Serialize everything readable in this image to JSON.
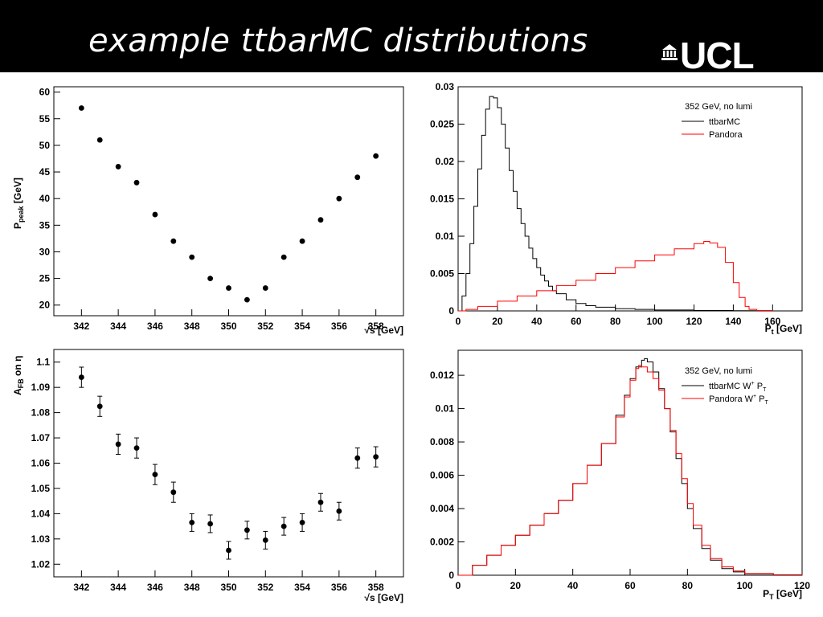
{
  "header": {
    "title": "example ttbarMC distributions",
    "logo_text": "UCL",
    "background": "#000000",
    "title_color": "#ffffff"
  },
  "chart_data": [
    {
      "type": "scatter",
      "x": [
        342,
        343,
        344,
        345,
        346,
        347,
        348,
        349,
        350,
        351,
        352,
        353,
        354,
        355,
        356,
        357,
        358
      ],
      "y": [
        57,
        51,
        46,
        43,
        37,
        32,
        29,
        25,
        23.2,
        21,
        23.2,
        29,
        32,
        36,
        40,
        44,
        48
      ],
      "xlabel": "√s [GeV]",
      "ylabel": "P",
      "ylabel_sub": "peak",
      "ylabel_unit": " [GeV]",
      "xlim": [
        340.5,
        359.5
      ],
      "ylim": [
        18,
        61
      ],
      "xticks": [
        342,
        344,
        346,
        348,
        350,
        352,
        354,
        356,
        358
      ],
      "yticks": [
        20,
        25,
        30,
        35,
        40,
        45,
        50,
        55,
        60
      ],
      "grid": false
    },
    {
      "type": "line",
      "xlabel": "P",
      "xlabel_sub": "t",
      "xlabel_unit": " [GeV]",
      "xlim": [
        0,
        175
      ],
      "ylim": [
        0,
        0.03
      ],
      "xticks": [
        0,
        20,
        40,
        60,
        80,
        100,
        120,
        140,
        160
      ],
      "yticks": [
        0,
        0.005,
        0.01,
        0.015,
        0.02,
        0.025,
        0.03
      ],
      "legend_position": "top-right",
      "legend_title": "352 GeV, no lumi",
      "grid": false,
      "series": [
        {
          "name": "ttbarMC",
          "color": "#000000",
          "points": [
            [
              0,
              0
            ],
            [
              2,
              0.002
            ],
            [
              4,
              0.005
            ],
            [
              6,
              0.009
            ],
            [
              8,
              0.014
            ],
            [
              10,
              0.019
            ],
            [
              12,
              0.0235
            ],
            [
              14,
              0.027
            ],
            [
              16,
              0.0287
            ],
            [
              18,
              0.0285
            ],
            [
              20,
              0.0272
            ],
            [
              22,
              0.025
            ],
            [
              24,
              0.0218
            ],
            [
              26,
              0.0188
            ],
            [
              28,
              0.016
            ],
            [
              30,
              0.0137
            ],
            [
              32,
              0.0117
            ],
            [
              34,
              0.01
            ],
            [
              36,
              0.0084
            ],
            [
              38,
              0.007
            ],
            [
              40,
              0.0058
            ],
            [
              42,
              0.0048
            ],
            [
              44,
              0.004
            ],
            [
              46,
              0.0033
            ],
            [
              48,
              0.0027
            ],
            [
              50,
              0.0023
            ],
            [
              55,
              0.0015
            ],
            [
              60,
              0.001
            ],
            [
              65,
              0.0007
            ],
            [
              70,
              0.0005
            ],
            [
              80,
              0.0003
            ],
            [
              90,
              0.0002
            ],
            [
              100,
              0.00012
            ],
            [
              120,
              5e-05
            ],
            [
              140,
              2e-05
            ],
            [
              160,
              0
            ]
          ]
        },
        {
          "name": "Pandora",
          "color": "#ff0000",
          "points": [
            [
              0,
              0
            ],
            [
              4,
              0.0002
            ],
            [
              10,
              0.0006
            ],
            [
              20,
              0.0013
            ],
            [
              30,
              0.002
            ],
            [
              40,
              0.0027
            ],
            [
              50,
              0.0034
            ],
            [
              60,
              0.0041
            ],
            [
              70,
              0.005
            ],
            [
              80,
              0.0058
            ],
            [
              90,
              0.0067
            ],
            [
              100,
              0.0075
            ],
            [
              110,
              0.0083
            ],
            [
              120,
              0.009
            ],
            [
              125,
              0.0093
            ],
            [
              128,
              0.0091
            ],
            [
              132,
              0.0085
            ],
            [
              136,
              0.0065
            ],
            [
              140,
              0.0038
            ],
            [
              143,
              0.0018
            ],
            [
              146,
              0.0006
            ],
            [
              148,
              0.0002
            ],
            [
              152,
              5e-05
            ],
            [
              160,
              0
            ]
          ]
        }
      ]
    },
    {
      "type": "scatter",
      "x": [
        342,
        343,
        344,
        345,
        346,
        347,
        348,
        349,
        350,
        351,
        352,
        353,
        354,
        355,
        356,
        357,
        358
      ],
      "y": [
        1.094,
        1.0825,
        1.0675,
        1.066,
        1.0555,
        1.0485,
        1.0365,
        1.036,
        1.0255,
        1.0335,
        1.0295,
        1.035,
        1.0365,
        1.0445,
        1.041,
        1.062,
        1.0625
      ],
      "yerr": [
        0.004,
        0.004,
        0.004,
        0.004,
        0.004,
        0.004,
        0.0035,
        0.0035,
        0.0035,
        0.0035,
        0.0035,
        0.0035,
        0.0035,
        0.0035,
        0.0035,
        0.004,
        0.004
      ],
      "xlabel": "√s [GeV]",
      "ylabel": "A",
      "ylabel_sub": "FB",
      "ylabel_unit": " on η",
      "xlim": [
        340.5,
        359.5
      ],
      "ylim": [
        1.015,
        1.105
      ],
      "xticks": [
        342,
        344,
        346,
        348,
        350,
        352,
        354,
        356,
        358
      ],
      "yticks": [
        1.02,
        1.03,
        1.04,
        1.05,
        1.06,
        1.07,
        1.08,
        1.09,
        1.1
      ],
      "grid": false
    },
    {
      "type": "line",
      "xlabel": "P",
      "xlabel_sub": "T",
      "xlabel_unit": " [GeV]",
      "xlim": [
        0,
        120
      ],
      "ylim": [
        0,
        0.0135
      ],
      "xticks": [
        0,
        20,
        40,
        60,
        80,
        100,
        120
      ],
      "yticks": [
        0,
        0.002,
        0.004,
        0.006,
        0.008,
        0.01,
        0.012
      ],
      "legend_position": "top-right",
      "legend_title": "352 GeV, no lumi",
      "grid": false,
      "series": [
        {
          "name": "ttbarMC  W",
          "name_sup": "+",
          "name_tail": " P",
          "name_sub": "T",
          "color": "#000000",
          "points": [
            [
              0,
              0
            ],
            [
              5,
              0.0006
            ],
            [
              10,
              0.0012
            ],
            [
              15,
              0.0018
            ],
            [
              20,
              0.0024
            ],
            [
              25,
              0.003
            ],
            [
              30,
              0.0037
            ],
            [
              35,
              0.0045
            ],
            [
              40,
              0.0055
            ],
            [
              45,
              0.0066
            ],
            [
              50,
              0.0079
            ],
            [
              55,
              0.0096
            ],
            [
              58,
              0.0108
            ],
            [
              60,
              0.0118
            ],
            [
              62,
              0.0125
            ],
            [
              64,
              0.0129
            ],
            [
              65,
              0.013
            ],
            [
              66,
              0.0128
            ],
            [
              68,
              0.0122
            ],
            [
              70,
              0.0112
            ],
            [
              72,
              0.01
            ],
            [
              74,
              0.0086
            ],
            [
              76,
              0.007
            ],
            [
              78,
              0.0055
            ],
            [
              80,
              0.004
            ],
            [
              82,
              0.0028
            ],
            [
              85,
              0.0016
            ],
            [
              88,
              0.0009
            ],
            [
              92,
              0.0004
            ],
            [
              96,
              0.0002
            ],
            [
              100,
              8e-05
            ],
            [
              110,
              2e-05
            ],
            [
              120,
              0
            ]
          ]
        },
        {
          "name": "Pandora W",
          "name_sup": "+",
          "name_tail": " P",
          "name_sub": "T",
          "color": "#ff0000",
          "points": [
            [
              0,
              0
            ],
            [
              5,
              0.0006
            ],
            [
              10,
              0.0012
            ],
            [
              15,
              0.0018
            ],
            [
              20,
              0.0024
            ],
            [
              25,
              0.003
            ],
            [
              30,
              0.0037
            ],
            [
              35,
              0.0045
            ],
            [
              40,
              0.0055
            ],
            [
              45,
              0.0066
            ],
            [
              50,
              0.0079
            ],
            [
              55,
              0.0095
            ],
            [
              58,
              0.0107
            ],
            [
              60,
              0.0117
            ],
            [
              62,
              0.0124
            ],
            [
              63,
              0.0126
            ],
            [
              64,
              0.0125
            ],
            [
              66,
              0.0122
            ],
            [
              68,
              0.0118
            ],
            [
              70,
              0.0111
            ],
            [
              72,
              0.01
            ],
            [
              74,
              0.0087
            ],
            [
              76,
              0.0073
            ],
            [
              78,
              0.0058
            ],
            [
              80,
              0.0043
            ],
            [
              82,
              0.003
            ],
            [
              85,
              0.0018
            ],
            [
              88,
              0.001
            ],
            [
              92,
              0.0005
            ],
            [
              96,
              0.00025
            ],
            [
              100,
              0.0001
            ],
            [
              110,
              3e-05
            ],
            [
              120,
              0
            ]
          ]
        }
      ]
    }
  ]
}
